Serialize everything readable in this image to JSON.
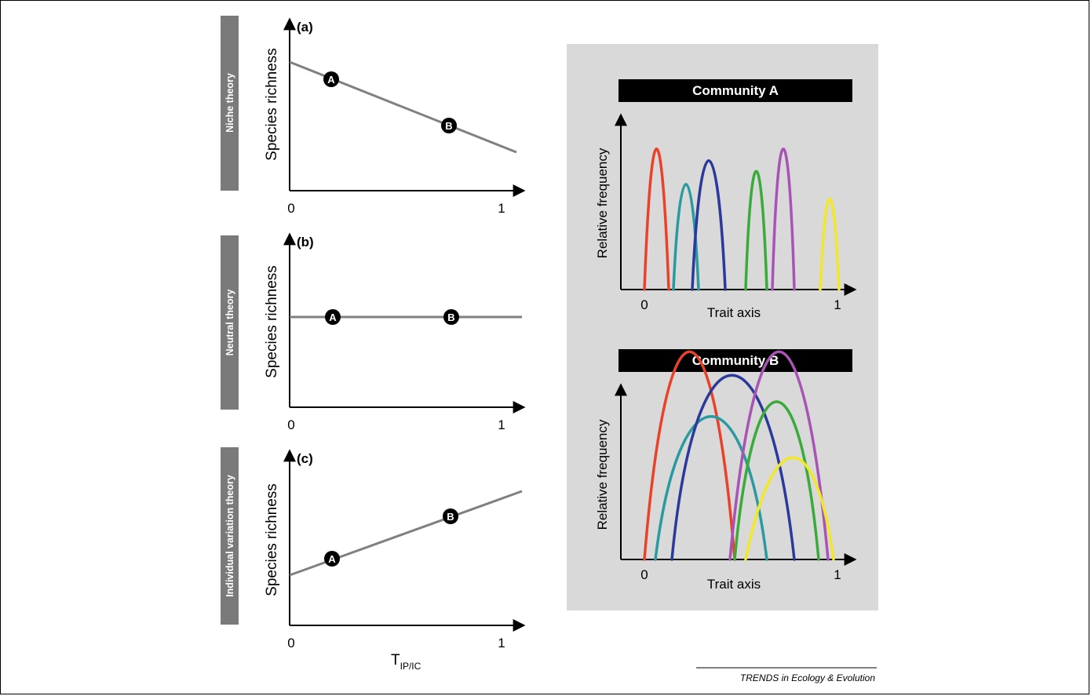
{
  "left_panels": [
    {
      "panel_label": "(a)",
      "side_label": "Niche theory",
      "ylabel": "Species richness",
      "x_start": "0",
      "x_end": "1",
      "points": [
        "A",
        "B"
      ]
    },
    {
      "panel_label": "(b)",
      "side_label": "Neutral theory",
      "ylabel": "Species richness",
      "x_start": "0",
      "x_end": "1",
      "points": [
        "A",
        "B"
      ]
    },
    {
      "panel_label": "(c)",
      "side_label": "Individual variation theory",
      "ylabel": "Species richness",
      "x_start": "0",
      "x_end": "1",
      "points": [
        "A",
        "B"
      ]
    }
  ],
  "x_axis_main": "T",
  "x_axis_sub": "IP/IC",
  "communities": [
    {
      "title": "Community A",
      "ylabel": "Relative frequency",
      "xlabel": "Trait axis",
      "x_start": "0",
      "x_end": "1"
    },
    {
      "title": "Community B",
      "ylabel": "Relative frequency",
      "xlabel": "Trait axis",
      "x_start": "0",
      "x_end": "1"
    }
  ],
  "credit": "TRENDS in Ecology & Evolution",
  "colors": {
    "gray_tab": "#7a7a7a",
    "line_gray": "#808080",
    "panel_bg": "#d9d9d9",
    "species": [
      "#e8432a",
      "#2a9aa0",
      "#2b3a9a",
      "#3aaa3a",
      "#a854b4",
      "#f2e82a"
    ]
  }
}
